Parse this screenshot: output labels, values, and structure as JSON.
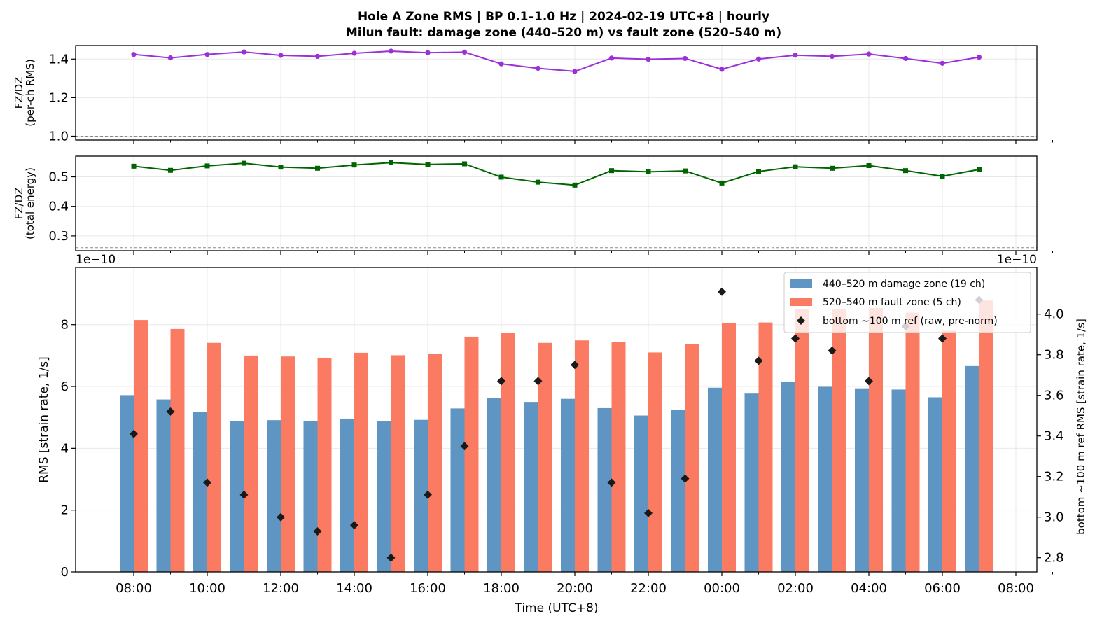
{
  "title_line1": "Hole A Zone RMS  |  BP 0.1–1.0 Hz  |  2024-02-19 UTC+8  |  hourly",
  "title_line2": "Milun fault: damage zone (440–520 m) vs fault zone (520–540 m)",
  "colors": {
    "ratio_rms": "#9b30d9",
    "ratio_energy": "#006400",
    "damage_zone": "#5f95c3",
    "fault_zone": "#fb7b62",
    "reference": "#1a1a1a"
  },
  "chart_data": [
    {
      "type": "line",
      "ylabel": "FZ/DZ\n(per-ch RMS)",
      "ylim": [
        0.98,
        1.47
      ],
      "yticks": [
        1.0,
        1.2,
        1.4
      ],
      "ref_line": 1.0,
      "grid": true,
      "marker": "circle",
      "series": [
        {
          "values": [
            1.424,
            1.406,
            1.424,
            1.437,
            1.419,
            1.414,
            1.43,
            1.441,
            1.433,
            1.436,
            1.375,
            1.352,
            1.336,
            1.405,
            1.399,
            1.403,
            1.347,
            1.4,
            1.42,
            1.414,
            1.426,
            1.403,
            1.378,
            1.41
          ]
        }
      ]
    },
    {
      "type": "line",
      "ylabel": "FZ/DZ\n(total energy)",
      "ylim": [
        0.25,
        0.57
      ],
      "yticks": [
        0.3,
        0.4,
        0.5
      ],
      "ref_line": 0.26,
      "grid": true,
      "marker": "square",
      "series": [
        {
          "values": [
            0.536,
            0.522,
            0.537,
            0.546,
            0.533,
            0.529,
            0.54,
            0.548,
            0.542,
            0.544,
            0.499,
            0.482,
            0.472,
            0.521,
            0.517,
            0.52,
            0.479,
            0.518,
            0.534,
            0.529,
            0.538,
            0.521,
            0.502,
            0.525
          ]
        }
      ]
    },
    {
      "type": "bar",
      "xlabel": "Time (UTC+8)",
      "ylabel": "RMS  [strain rate, 1/s]",
      "ylabel_right": "bottom ~100 m ref RMS  [strain rate, 1/s]",
      "offset_text_left": "1e−10",
      "offset_text_right": "1e−10",
      "ylim": [
        0,
        9.85
      ],
      "yticks": [
        0,
        2,
        4,
        6,
        8
      ],
      "ylim_right": [
        2.73,
        4.23
      ],
      "yticks_right": [
        2.8,
        3.0,
        3.2,
        3.4,
        3.6,
        3.8,
        4.0
      ],
      "grid": true,
      "legend_position": "top-right",
      "categories": [
        "08:00",
        "09:00",
        "10:00",
        "11:00",
        "12:00",
        "13:00",
        "14:00",
        "15:00",
        "16:00",
        "17:00",
        "18:00",
        "19:00",
        "20:00",
        "21:00",
        "22:00",
        "23:00",
        "00:00",
        "01:00",
        "02:00",
        "03:00",
        "04:00",
        "05:00",
        "06:00",
        "07:00"
      ],
      "xticks": [
        "08:00",
        "10:00",
        "12:00",
        "14:00",
        "16:00",
        "18:00",
        "20:00",
        "22:00",
        "00:00",
        "02:00",
        "04:00",
        "06:00",
        "08:00"
      ],
      "series": [
        {
          "name": "440–520 m  damage zone (19 ch)",
          "values": [
            5.72,
            5.58,
            5.18,
            4.87,
            4.91,
            4.89,
            4.96,
            4.87,
            4.92,
            5.29,
            5.62,
            5.5,
            5.6,
            5.3,
            5.06,
            5.25,
            5.96,
            5.77,
            6.16,
            5.99,
            5.94,
            5.9,
            5.65,
            6.66
          ]
        },
        {
          "name": "520–540 m  fault zone (5 ch)",
          "values": [
            8.15,
            7.86,
            7.41,
            7.0,
            6.97,
            6.93,
            7.09,
            7.01,
            7.05,
            7.61,
            7.73,
            7.41,
            7.49,
            7.44,
            7.1,
            7.36,
            8.04,
            8.07,
            8.5,
            8.49,
            8.54,
            8.39,
            7.8,
            8.78
          ]
        },
        {
          "name": "bottom ~100 m ref (raw, pre-norm)",
          "axis": "right",
          "marker": "diamond",
          "values": [
            3.41,
            3.52,
            3.17,
            3.11,
            3.0,
            2.93,
            2.96,
            2.8,
            3.11,
            3.35,
            3.67,
            3.67,
            3.75,
            3.17,
            3.02,
            3.19,
            4.11,
            3.77,
            3.88,
            3.82,
            3.67,
            3.94,
            3.88,
            4.07
          ]
        }
      ]
    }
  ]
}
